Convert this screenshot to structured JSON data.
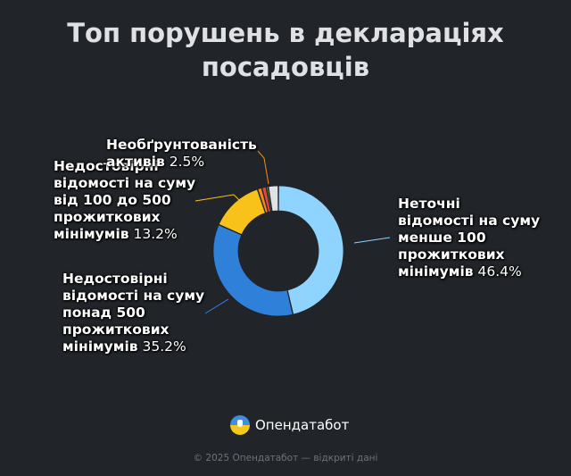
{
  "title": {
    "line1": "Топ порушень в деклараціях",
    "line2": "посадовців"
  },
  "brand": {
    "name": "Опендатабот",
    "icon": "opendatabot-logo-icon"
  },
  "footer": "© 2025 Опендатабот — відкриті дані",
  "chart_data": {
    "type": "pie",
    "title": "Топ порушень в деклараціях посадовців",
    "donut": true,
    "unit": "%",
    "slices": [
      {
        "name": "Неточні відомості на суму менше 100 прожиткових мінімумів",
        "value": 46.4,
        "label_value": "46.4%",
        "color": "#8fd3ff"
      },
      {
        "name": "Недостовірні відомості на суму понад 500 прожиткових мінімумів",
        "value": 35.2,
        "label_value": "35.2%",
        "color": "#2f80d8"
      },
      {
        "name": "Недостовірні відомості на суму від 100 до 500 прожиткових мінімумів",
        "value": 13.2,
        "label_value": "13.2%",
        "color": "#f9c21a"
      },
      {
        "name": "",
        "value": 1.1,
        "label_value": "",
        "color": "#f28a1b"
      },
      {
        "name": "",
        "value": 1.1,
        "label_value": "",
        "color": "#e6463f"
      },
      {
        "name": "",
        "value": 0.5,
        "label_value": "",
        "color": "#66bb4a"
      },
      {
        "name": "Необґрунтованість активів",
        "value": 2.5,
        "label_value": "2.5%",
        "color": "#dfe3e8"
      }
    ],
    "visible_labels": [
      {
        "lines": [
          "Неточні",
          "відомості на суму",
          "менше 100",
          "прожиткових"
        ],
        "last_name": "мінімумів",
        "pct": "46.4%"
      },
      {
        "lines": [
          "Недостовірні",
          "відомості на суму",
          "понад 500",
          "прожиткових"
        ],
        "last_name": "мінімумів",
        "pct": "35.2%"
      },
      {
        "lines": [
          "Недостовірні",
          "відомості на суму",
          "від 100 до 500",
          "прожиткових"
        ],
        "last_name": "мінімумів",
        "pct": "13.2%"
      },
      {
        "lines": [
          "Необґрунтованість"
        ],
        "last_name": "активів",
        "pct": "2.5%"
      }
    ]
  }
}
